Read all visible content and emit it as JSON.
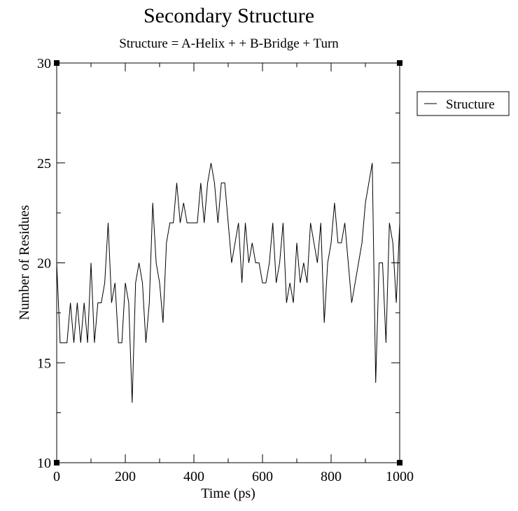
{
  "chart_data": {
    "type": "line",
    "title": "Secondary Structure",
    "subtitle": "Structure = A-Helix +  + B-Bridge + Turn",
    "xlabel": "Time (ps)",
    "ylabel": "Number of Residues",
    "xlim": [
      0,
      1000
    ],
    "ylim": [
      10,
      30
    ],
    "xticks": [
      0,
      200,
      400,
      600,
      800,
      1000
    ],
    "yticks": [
      10,
      15,
      20,
      25,
      30
    ],
    "grid": false,
    "legend_position": "right",
    "series": [
      {
        "name": "Structure",
        "color": "#000000",
        "x": [
          0,
          10,
          20,
          30,
          40,
          50,
          60,
          70,
          80,
          90,
          100,
          110,
          120,
          130,
          140,
          150,
          160,
          170,
          180,
          190,
          200,
          210,
          220,
          230,
          240,
          250,
          260,
          270,
          280,
          290,
          300,
          310,
          320,
          330,
          340,
          350,
          360,
          370,
          380,
          390,
          400,
          410,
          420,
          430,
          440,
          450,
          460,
          470,
          480,
          490,
          500,
          510,
          520,
          530,
          540,
          550,
          560,
          570,
          580,
          590,
          600,
          610,
          620,
          630,
          640,
          650,
          660,
          670,
          680,
          690,
          700,
          710,
          720,
          730,
          740,
          750,
          760,
          770,
          780,
          790,
          800,
          810,
          820,
          830,
          840,
          850,
          860,
          870,
          880,
          890,
          900,
          910,
          920,
          930,
          940,
          950,
          960,
          970,
          980,
          990,
          1000
        ],
        "y": [
          20,
          16,
          16,
          16,
          18,
          16,
          18,
          16,
          18,
          16,
          20,
          16,
          18,
          18,
          19,
          22,
          18,
          19,
          16,
          16,
          19,
          18,
          13,
          19,
          20,
          19,
          16,
          18,
          23,
          20,
          19,
          17,
          21,
          22,
          22,
          24,
          22,
          23,
          22,
          22,
          22,
          22,
          24,
          22,
          24,
          25,
          24,
          22,
          24,
          24,
          22,
          20,
          21,
          22,
          19,
          22,
          20,
          21,
          20,
          20,
          19,
          19,
          20,
          22,
          19,
          20,
          22,
          18,
          19,
          18,
          21,
          19,
          20,
          19,
          22,
          21,
          20,
          22,
          17,
          20,
          21,
          23,
          21,
          21,
          22,
          20,
          18,
          19,
          20,
          21,
          23,
          24,
          25,
          14,
          20,
          20,
          16,
          22,
          21,
          18,
          22
        ]
      }
    ]
  }
}
